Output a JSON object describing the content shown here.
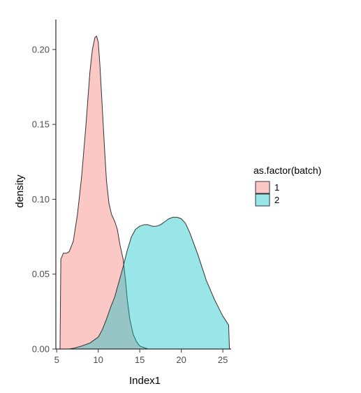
{
  "chart_data": {
    "type": "area",
    "subtype": "density",
    "title": "",
    "xlabel": "Index1",
    "ylabel": "density",
    "xlim": [
      4.9,
      26.0
    ],
    "ylim": [
      0,
      0.22
    ],
    "x_ticks": [
      5,
      10,
      15,
      20,
      25
    ],
    "x_tick_labels": [
      "5",
      "10",
      "15",
      "20",
      "25"
    ],
    "y_ticks": [
      0,
      0.05,
      0.1,
      0.15,
      0.2
    ],
    "y_tick_labels": [
      "0.00",
      "0.05",
      "0.10",
      "0.15",
      "0.20"
    ],
    "grid": false,
    "legend": {
      "title": "as.factor(batch)",
      "position": "right",
      "entries": [
        {
          "label": "1",
          "color": "#F8766D"
        },
        {
          "label": "2",
          "color": "#00BFC4"
        }
      ]
    },
    "series": [
      {
        "name": "1",
        "color": "#F8766D",
        "x": [
          5.4,
          5.5,
          5.8,
          6.2,
          6.5,
          7.0,
          7.5,
          8.0,
          8.5,
          9.0,
          9.3,
          9.6,
          9.8,
          10.0,
          10.2,
          10.5,
          10.8,
          11.0,
          11.3,
          11.6,
          12.0,
          12.3,
          12.6,
          13.0,
          13.3,
          13.5,
          13.8,
          14.2,
          14.6,
          15.0,
          15.5,
          16.0
        ],
        "y": [
          0.0,
          0.06,
          0.064,
          0.064,
          0.065,
          0.072,
          0.09,
          0.115,
          0.148,
          0.185,
          0.2,
          0.208,
          0.209,
          0.205,
          0.19,
          0.16,
          0.13,
          0.112,
          0.097,
          0.09,
          0.085,
          0.08,
          0.07,
          0.06,
          0.045,
          0.033,
          0.02,
          0.01,
          0.005,
          0.002,
          0.001,
          0.0
        ]
      },
      {
        "name": "2",
        "color": "#00BFC4",
        "x": [
          6.5,
          7.0,
          8.0,
          9.0,
          10.0,
          10.5,
          11.0,
          11.5,
          12.0,
          12.5,
          13.0,
          13.5,
          14.0,
          14.5,
          15.0,
          15.5,
          16.0,
          16.5,
          17.0,
          17.5,
          18.0,
          18.5,
          19.0,
          19.5,
          20.0,
          20.5,
          21.0,
          22.0,
          23.0,
          24.0,
          25.0,
          25.7,
          25.8
        ],
        "y": [
          0.0,
          0.0005,
          0.002,
          0.004,
          0.008,
          0.013,
          0.02,
          0.028,
          0.035,
          0.045,
          0.055,
          0.066,
          0.075,
          0.08,
          0.082,
          0.083,
          0.083,
          0.082,
          0.082,
          0.083,
          0.085,
          0.087,
          0.088,
          0.088,
          0.087,
          0.084,
          0.078,
          0.063,
          0.046,
          0.033,
          0.022,
          0.016,
          0.0
        ]
      }
    ]
  }
}
